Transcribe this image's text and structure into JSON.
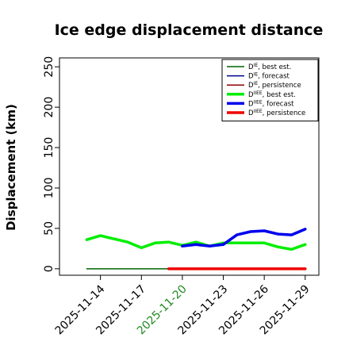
{
  "chart_data": {
    "type": "line",
    "title": "Ice edge displacement distance",
    "ylabel": "Displacement (km)",
    "xlabel": "",
    "ylim": [
      -8,
      261
    ],
    "xlim": [
      "2025-11-11",
      "2025-11-30"
    ],
    "y_ticks": [
      0,
      50,
      100,
      150,
      200,
      250
    ],
    "x_ticks": [
      {
        "date": "2025-11-14",
        "label": "2025-11-14",
        "color": "#000000"
      },
      {
        "date": "2025-11-17",
        "label": "2025-11-17",
        "color": "#000000"
      },
      {
        "date": "2025-11-20",
        "label": "2025-11-20",
        "color": "#228B22"
      },
      {
        "date": "2025-11-23",
        "label": "2025-11-23",
        "color": "#000000"
      },
      {
        "date": "2025-11-26",
        "label": "2025-11-26",
        "color": "#000000"
      },
      {
        "date": "2025-11-29",
        "label": "2025-11-29",
        "color": "#000000"
      }
    ],
    "grid": false,
    "legend_position": "top-right",
    "series": [
      {
        "name": "D^IE best est.",
        "base": "D",
        "sup": "IE",
        "suffix": ", best est.",
        "color": "#006400",
        "width": 1.5,
        "points": [
          [
            "2025-11-13",
            0
          ],
          [
            "2025-11-14",
            0
          ],
          [
            "2025-11-15",
            0
          ],
          [
            "2025-11-16",
            0
          ],
          [
            "2025-11-17",
            0
          ],
          [
            "2025-11-18",
            0
          ],
          [
            "2025-11-19",
            0
          ]
        ]
      },
      {
        "name": "D^IE forecast",
        "base": "D",
        "sup": "IE",
        "suffix": ", forecast",
        "color": "#00008B",
        "width": 1.5,
        "points": []
      },
      {
        "name": "D^IE persistence",
        "base": "D",
        "sup": "IE",
        "suffix": ", persistence",
        "color": "#8B0000",
        "width": 1.5,
        "points": []
      },
      {
        "name": "D^IIEE best est.",
        "base": "D",
        "sup": "IIEE",
        "suffix": ", best est.",
        "color": "#00EE00",
        "width": 3.5,
        "points": [
          [
            "2025-11-13",
            36
          ],
          [
            "2025-11-14",
            41
          ],
          [
            "2025-11-15",
            37
          ],
          [
            "2025-11-16",
            33
          ],
          [
            "2025-11-17",
            26
          ],
          [
            "2025-11-18",
            32
          ],
          [
            "2025-11-19",
            33
          ],
          [
            "2025-11-20",
            29
          ],
          [
            "2025-11-21",
            33
          ],
          [
            "2025-11-22",
            28
          ],
          [
            "2025-11-23",
            32
          ],
          [
            "2025-11-24",
            32
          ],
          [
            "2025-11-25",
            32
          ],
          [
            "2025-11-26",
            32
          ],
          [
            "2025-11-27",
            27
          ],
          [
            "2025-11-28",
            24
          ],
          [
            "2025-11-29",
            30
          ]
        ]
      },
      {
        "name": "D^IIEE forecast",
        "base": "D",
        "sup": "IIEE",
        "suffix": ", forecast",
        "color": "#0000EE",
        "width": 3.5,
        "points": [
          [
            "2025-11-20",
            28
          ],
          [
            "2025-11-21",
            30
          ],
          [
            "2025-11-22",
            28
          ],
          [
            "2025-11-23",
            30
          ],
          [
            "2025-11-24",
            42
          ],
          [
            "2025-11-25",
            46
          ],
          [
            "2025-11-26",
            47
          ],
          [
            "2025-11-27",
            43
          ],
          [
            "2025-11-28",
            42
          ],
          [
            "2025-11-29",
            49
          ]
        ]
      },
      {
        "name": "D^IIEE persistence",
        "base": "D",
        "sup": "IIEE",
        "suffix": ", persistence",
        "color": "#EE0000",
        "width": 3.5,
        "points": [
          [
            "2025-11-19",
            0
          ],
          [
            "2025-11-20",
            0
          ],
          [
            "2025-11-21",
            0
          ],
          [
            "2025-11-22",
            0
          ],
          [
            "2025-11-23",
            0
          ],
          [
            "2025-11-24",
            0
          ],
          [
            "2025-11-25",
            0
          ],
          [
            "2025-11-26",
            0
          ],
          [
            "2025-11-27",
            0
          ],
          [
            "2025-11-28",
            0
          ],
          [
            "2025-11-29",
            0
          ]
        ]
      }
    ]
  }
}
